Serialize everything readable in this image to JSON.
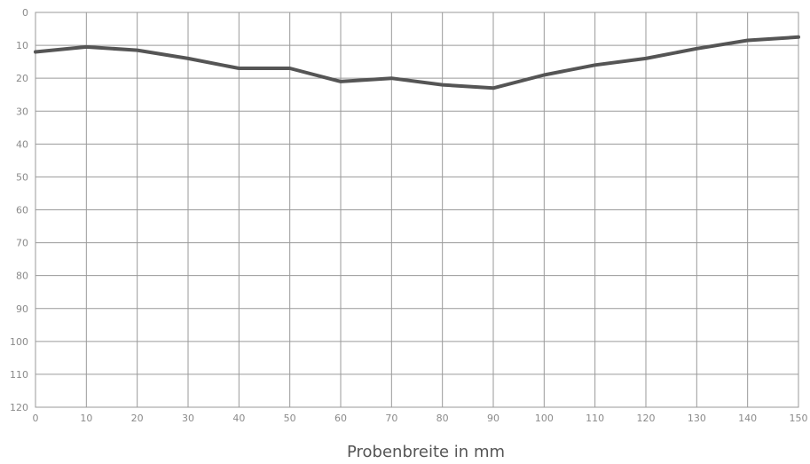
{
  "chart_data": {
    "type": "line",
    "title": "",
    "xlabel": "Probenbreite in mm",
    "ylabel": "",
    "xlim": [
      0,
      150
    ],
    "ylim": [
      0,
      120
    ],
    "y_inverted": true,
    "grid": true,
    "x_ticks": [
      0,
      10,
      20,
      30,
      40,
      50,
      60,
      70,
      80,
      90,
      100,
      110,
      120,
      130,
      140,
      150
    ],
    "y_ticks": [
      0,
      10,
      20,
      30,
      40,
      50,
      60,
      70,
      80,
      90,
      100,
      110,
      120
    ],
    "series": [
      {
        "color": "#555555",
        "x": [
          0,
          10,
          20,
          30,
          40,
          50,
          60,
          70,
          80,
          90,
          100,
          110,
          120,
          130,
          140,
          150
        ],
        "y": [
          12,
          10.5,
          11.5,
          14,
          17,
          17,
          21,
          20,
          22,
          23,
          19,
          16,
          14,
          11,
          8.5,
          7.5
        ]
      }
    ]
  }
}
